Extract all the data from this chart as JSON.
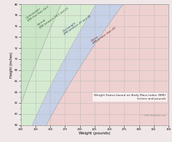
{
  "title": "Weight Status based on Body Mass Index (BMI)\nInches and pounds",
  "xlabel": "Weight (pounds)",
  "ylabel": "Height (inches)",
  "x_min": 100,
  "x_max": 350,
  "y_min": 58,
  "y_max": 80,
  "bmi_boundaries": [
    18.5,
    25.0,
    30.0
  ],
  "colors": {
    "underweight": "#c8e6c4",
    "normal": "#d4ecd0",
    "overweight": "#c4d0e8",
    "obese": "#f0d0d0",
    "background": "#f0e8e8",
    "grid_major": "#bbbbbb",
    "grid_minor": "#dddddd"
  },
  "x_ticks_major": [
    100,
    125,
    150,
    175,
    200,
    225,
    250,
    275,
    300,
    325,
    350
  ],
  "x_ticks_minor_step": 5,
  "y_ticks_major": [
    58,
    60,
    62,
    64,
    66,
    68,
    70,
    72,
    74,
    76,
    78,
    80
  ],
  "y_ticks_minor_step": 1,
  "label_rotation": 35,
  "copyright": "© 2004 HealthCalc.net"
}
